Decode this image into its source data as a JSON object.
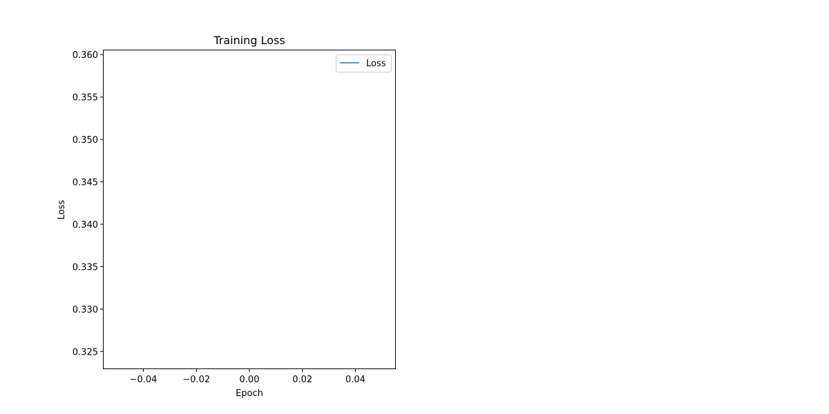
{
  "chart_data": {
    "type": "line",
    "title": "Training Loss",
    "xlabel": "Epoch",
    "ylabel": "Loss",
    "xlim": [
      -0.055,
      0.055
    ],
    "ylim": [
      0.323,
      0.3605
    ],
    "xticks": [
      -0.04,
      -0.02,
      0.0,
      0.02,
      0.04
    ],
    "xtick_labels": [
      "−0.04",
      "−0.02",
      "0.00",
      "0.02",
      "0.04"
    ],
    "yticks": [
      0.325,
      0.33,
      0.335,
      0.34,
      0.345,
      0.35,
      0.355,
      0.36
    ],
    "ytick_labels": [
      "0.325",
      "0.330",
      "0.335",
      "0.340",
      "0.345",
      "0.350",
      "0.355",
      "0.360"
    ],
    "grid": false,
    "legend_position": "top-right",
    "series": [
      {
        "name": "Loss",
        "color": "#1f77b4",
        "x": [],
        "y": []
      }
    ]
  }
}
